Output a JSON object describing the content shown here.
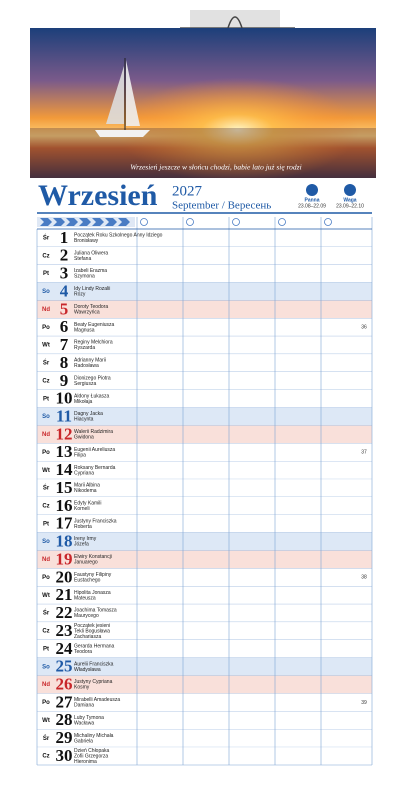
{
  "header": {
    "caption": "Wrzesień jeszcze w słońcu chodzi, babie lato już się rodzi",
    "month": "Wrzesień",
    "year": "2027",
    "subtitle": "September / Вересень",
    "zodiac": [
      {
        "name": "Panna",
        "dates": "23.08–22.09"
      },
      {
        "name": "Waga",
        "dates": "23.09–22.10"
      }
    ]
  },
  "rows": [
    {
      "weekday": "Śr",
      "day": 1,
      "names": [
        "Początek Roku Szkolnego Anny Idziego",
        "Bronisławy"
      ]
    },
    {
      "weekday": "Cz",
      "day": 2,
      "names": [
        "Juliana Oliwera",
        "Stefana"
      ]
    },
    {
      "weekday": "Pt",
      "day": 3,
      "names": [
        "Izabeli Erazma",
        "Szymona"
      ]
    },
    {
      "weekday": "So",
      "day": 4,
      "names": [
        "Idy Lindy Rozalii",
        "Rózy"
      ]
    },
    {
      "weekday": "Nd",
      "day": 5,
      "names": [
        "Doroty Teodora",
        "Wawrzyńca"
      ]
    },
    {
      "weekday": "Po",
      "day": 6,
      "names": [
        "Beaty Eugeniusza",
        "Magnusa"
      ],
      "week": 36
    },
    {
      "weekday": "Wt",
      "day": 7,
      "names": [
        "Reginy Melchiora",
        "Ryszarda"
      ]
    },
    {
      "weekday": "Śr",
      "day": 8,
      "names": [
        "Adrianny Marii",
        "Radosława"
      ]
    },
    {
      "weekday": "Cz",
      "day": 9,
      "names": [
        "Dionizego Piotra",
        "Sergiusza"
      ]
    },
    {
      "weekday": "Pt",
      "day": 10,
      "names": [
        "Aldony Łukasza",
        "Mikołaja"
      ]
    },
    {
      "weekday": "So",
      "day": 11,
      "names": [
        "Dagny Jacka",
        "Hiacynta"
      ]
    },
    {
      "weekday": "Nd",
      "day": 12,
      "names": [
        "Walerii Radzimira",
        "Gwidona"
      ]
    },
    {
      "weekday": "Po",
      "day": 13,
      "names": [
        "Eugenii Aureliusza",
        "Filipa"
      ],
      "week": 37
    },
    {
      "weekday": "Wt",
      "day": 14,
      "names": [
        "Roksany Bernarda",
        "Cypriana"
      ]
    },
    {
      "weekday": "Śr",
      "day": 15,
      "names": [
        "Marii Albina",
        "Nikodema"
      ]
    },
    {
      "weekday": "Cz",
      "day": 16,
      "names": [
        "Edyty Kamili",
        "Korneli"
      ]
    },
    {
      "weekday": "Pt",
      "day": 17,
      "names": [
        "Justyny Franciszka",
        "Roberta"
      ]
    },
    {
      "weekday": "So",
      "day": 18,
      "names": [
        "Ireny Irmy",
        "Józefa"
      ]
    },
    {
      "weekday": "Nd",
      "day": 19,
      "names": [
        "Elwiry Konstancji",
        "Januarego"
      ]
    },
    {
      "weekday": "Po",
      "day": 20,
      "names": [
        "Faustyny Filipiny",
        "Eustachego"
      ],
      "week": 38
    },
    {
      "weekday": "Wt",
      "day": 21,
      "names": [
        "Hipolita Jonasza",
        "Mateusza"
      ]
    },
    {
      "weekday": "Śr",
      "day": 22,
      "names": [
        "Joachima Tomasza",
        "Maurycego"
      ]
    },
    {
      "weekday": "Cz",
      "day": 23,
      "names": [
        "Początek jesieni",
        "Tekli Bogusława",
        "Zachariasza"
      ]
    },
    {
      "weekday": "Pt",
      "day": 24,
      "names": [
        "Gerarda Hermana",
        "Teodora"
      ]
    },
    {
      "weekday": "So",
      "day": 25,
      "names": [
        "Aurelii Franciszka",
        "Władysława"
      ]
    },
    {
      "weekday": "Nd",
      "day": 26,
      "names": [
        "Justyny Cypriana",
        "Kosmy"
      ]
    },
    {
      "weekday": "Po",
      "day": 27,
      "names": [
        "Mirabelli Amadeusza",
        "Damiana"
      ],
      "week": 39
    },
    {
      "weekday": "Wt",
      "day": 28,
      "names": [
        "Luby Tymona",
        "Wacława"
      ]
    },
    {
      "weekday": "Śr",
      "day": 29,
      "names": [
        "Michaliny Michała",
        "Gabriela"
      ]
    },
    {
      "weekday": "Cz",
      "day": 30,
      "names": [
        "Dzień Chłopaka",
        "Zofii Grzegorza",
        "Hieronima"
      ]
    }
  ]
}
